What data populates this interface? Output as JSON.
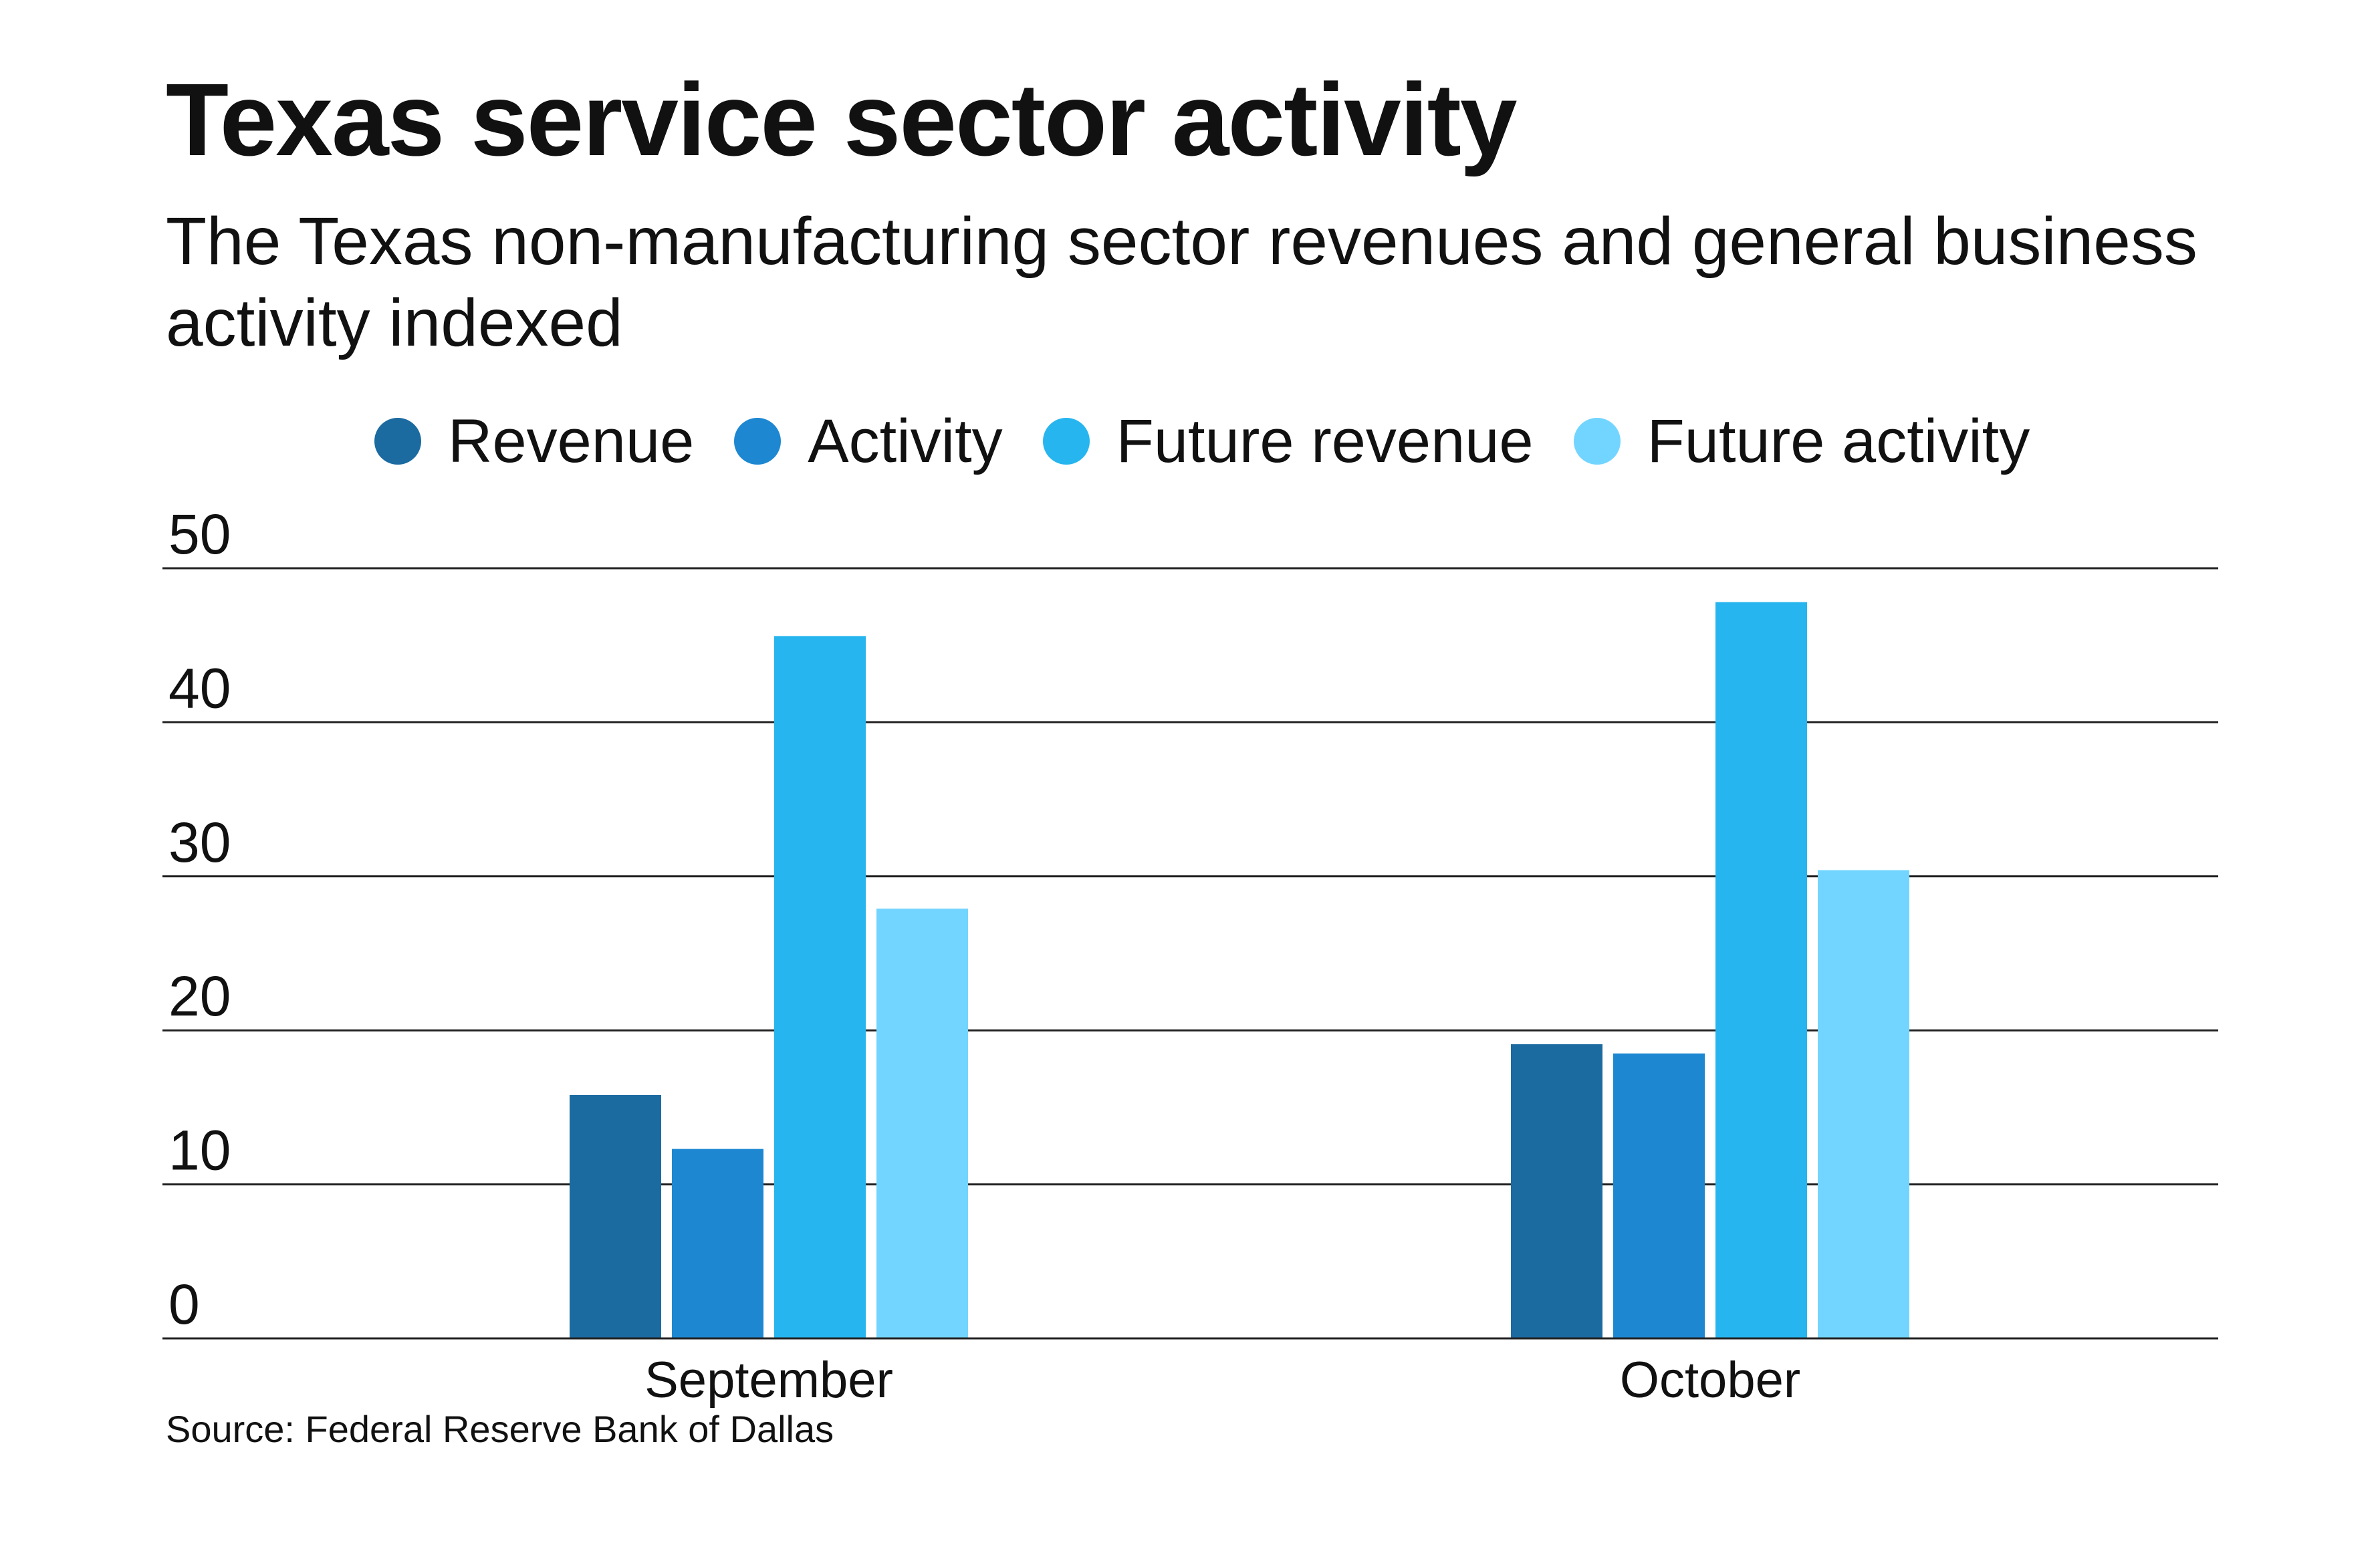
{
  "chart_data": {
    "type": "bar",
    "title": "Texas service sector activity",
    "subtitle": "The Texas non-manufacturing sector revenues and general business activity indexed",
    "categories": [
      "September",
      "October"
    ],
    "series": [
      {
        "name": "Revenue",
        "color": "#1b6aa0",
        "values": [
          15.8,
          19.1
        ]
      },
      {
        "name": "Activity",
        "color": "#1d87d1",
        "values": [
          12.3,
          18.5
        ]
      },
      {
        "name": "Future revenue",
        "color": "#26b5ef",
        "values": [
          45.6,
          47.8
        ]
      },
      {
        "name": "Future activity",
        "color": "#72d5ff",
        "values": [
          27.9,
          30.4
        ]
      }
    ],
    "y_ticks": [
      "0",
      "10",
      "20",
      "30",
      "40",
      "50"
    ],
    "ylim": [
      0,
      50
    ],
    "xlabel": "",
    "ylabel": "",
    "grid": true,
    "legend_position": "top",
    "source": "Source: Federal Reserve Bank of Dallas"
  }
}
